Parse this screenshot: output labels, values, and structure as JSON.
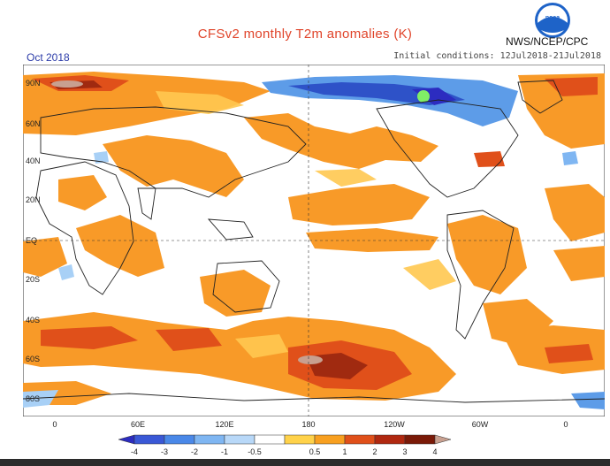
{
  "title": "CFSv2 monthly T2m anomalies (K)",
  "agency": "NWS/NCEP/CPC",
  "month": "Oct 2018",
  "initial_conditions": "Initial conditions: 12Jul2018-21Jul2018",
  "logo": {
    "icon": "noaa-logo",
    "text": "noaa"
  },
  "lat_labels": [
    "90N",
    "60N",
    "40N",
    "20N",
    "EQ",
    "20S",
    "40S",
    "60S",
    "80S"
  ],
  "lon_labels": [
    "0",
    "60E",
    "120E",
    "180",
    "120W",
    "60W",
    "0"
  ],
  "colorbar": {
    "labels": [
      "-4",
      "-3",
      "-2",
      "-1",
      "-0.5",
      "0.5",
      "1",
      "2",
      "3",
      "4"
    ],
    "colors": [
      "#2c2cc0",
      "#3a58d6",
      "#4a88e8",
      "#7fb6f2",
      "#b8d8f8",
      "#ffffff",
      "#ffd24a",
      "#f8a020",
      "#e0501a",
      "#b02810",
      "#7a1a08",
      "#c8a090"
    ]
  },
  "map_colors": {
    "warm_light": "#ffc850",
    "warm": "#f89a28",
    "warm_strong": "#e0501a",
    "warm_deep": "#a02a10",
    "cold_light": "#a8d0f6",
    "cold": "#5d9ce8",
    "cold_strong": "#2e52c8",
    "land_outline": "#222222"
  }
}
